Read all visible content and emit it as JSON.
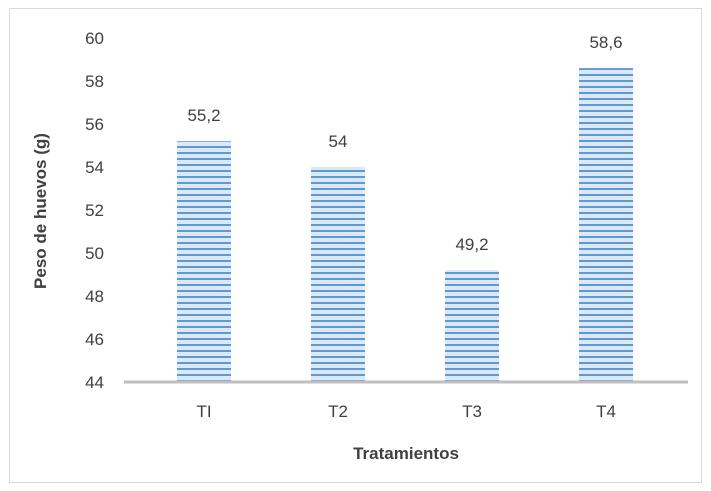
{
  "chart_data": {
    "type": "bar",
    "categories": [
      "TI",
      "T2",
      "T3",
      "T4"
    ],
    "values": [
      55.2,
      54,
      49.2,
      58.6
    ],
    "value_labels": [
      "55,2",
      "54",
      "49,2",
      "58,6"
    ],
    "xlabel": "Tratamientos",
    "ylabel": "Peso de huevos (g)",
    "ylim": [
      44,
      60
    ],
    "yticks": [
      44,
      46,
      48,
      50,
      52,
      54,
      56,
      58,
      60
    ],
    "grid": false,
    "legend": "none",
    "colors": {
      "bar_light": "#dce8f6",
      "bar_stripe": "#5b9bd5",
      "axis": "#bfbfbf",
      "text": "#404040",
      "border": "#d9d9d9"
    }
  }
}
